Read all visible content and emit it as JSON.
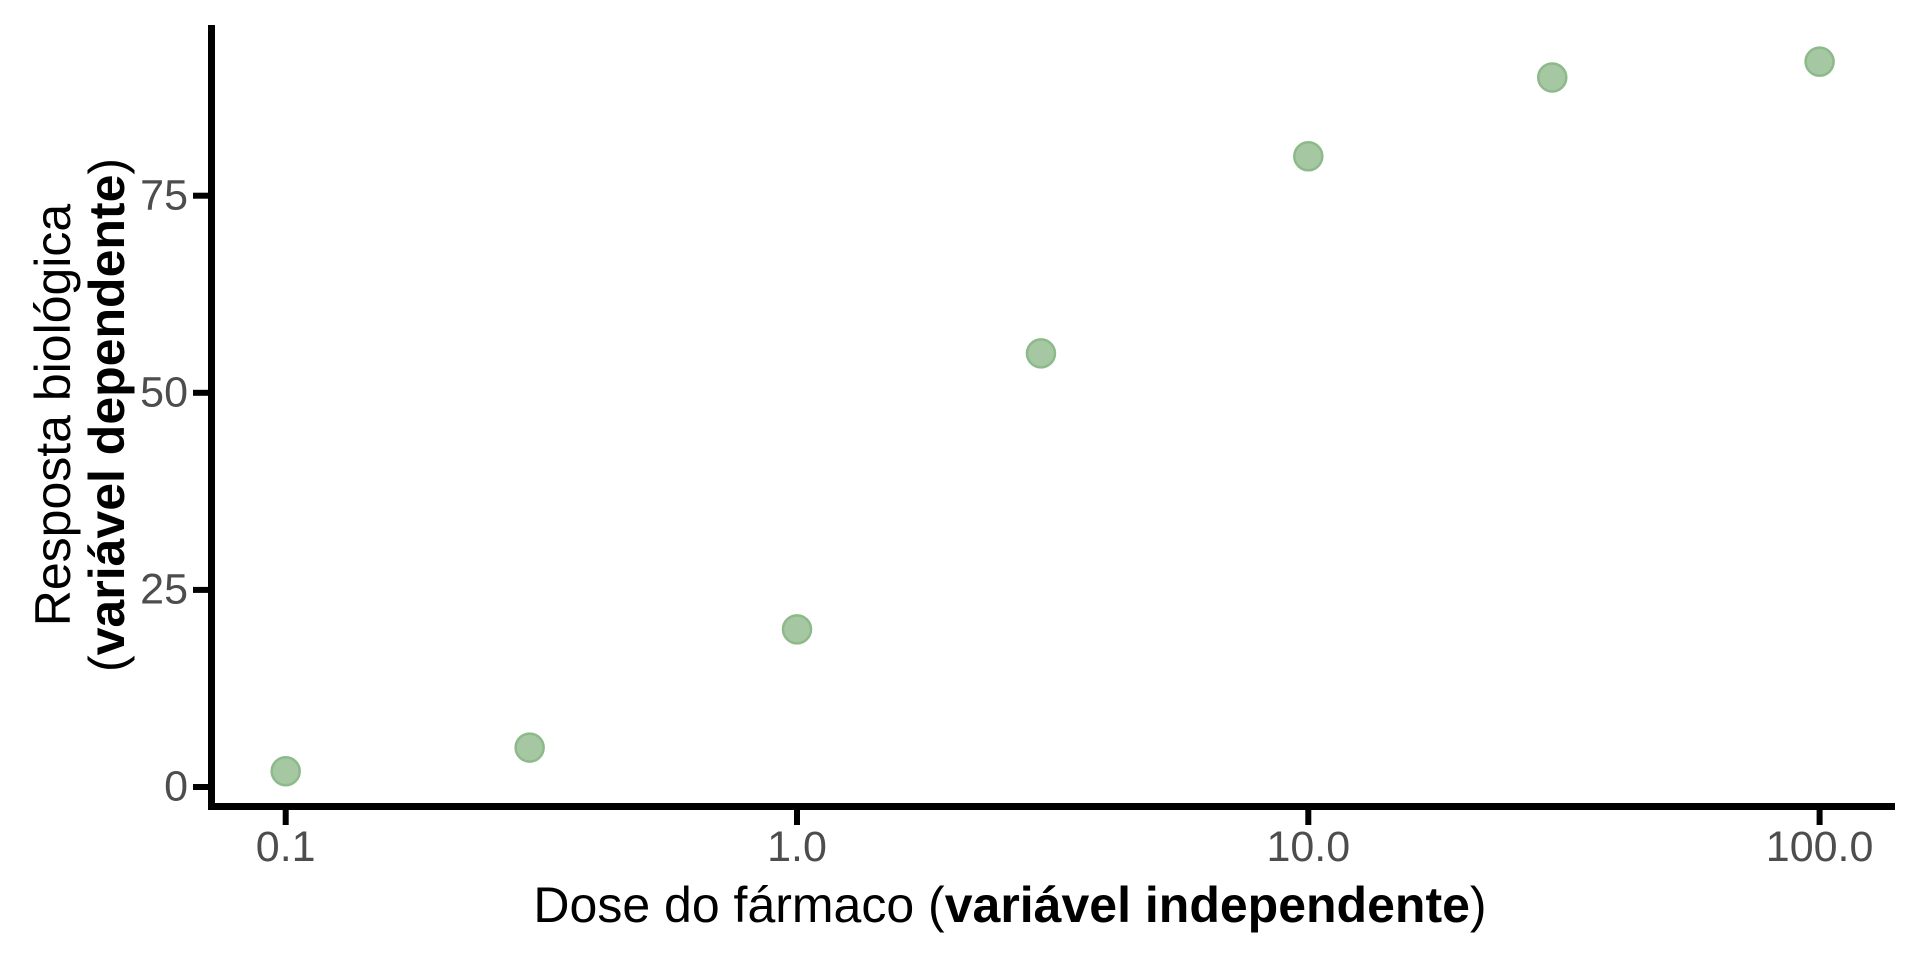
{
  "chart_data": {
    "type": "scatter",
    "title": "",
    "xlabel": {
      "prefix": "Dose do fármaco (",
      "bold": "variável independente",
      "suffix": ")"
    },
    "ylabel": {
      "line1": "Resposta biológica",
      "line2_prefix": "(",
      "line2_bold": "variável dependente",
      "line2_suffix": ")"
    },
    "x_scale": "log10",
    "x_ticks": [
      0.1,
      1.0,
      10.0,
      100.0
    ],
    "x_tick_labels": [
      "0.1",
      "1.0",
      "10.0",
      "100.0"
    ],
    "y_ticks": [
      0,
      25,
      50,
      75
    ],
    "y_tick_labels": [
      "0",
      "25",
      "50",
      "75"
    ],
    "xlim": [
      0.071,
      140
    ],
    "ylim": [
      -2.4,
      96.8
    ],
    "grid": false,
    "legend": false,
    "points": [
      {
        "x": 0.1,
        "y": 2
      },
      {
        "x": 0.3,
        "y": 5
      },
      {
        "x": 1,
        "y": 20
      },
      {
        "x": 3,
        "y": 55
      },
      {
        "x": 10,
        "y": 80
      },
      {
        "x": 30,
        "y": 90
      },
      {
        "x": 100,
        "y": 92
      }
    ],
    "colors": {
      "point_fill": "#A5C8A2",
      "point_stroke": "#8DB98B",
      "axis": "#000000",
      "tick_label": "#4D4D4D",
      "background": "#FFFFFF"
    }
  }
}
